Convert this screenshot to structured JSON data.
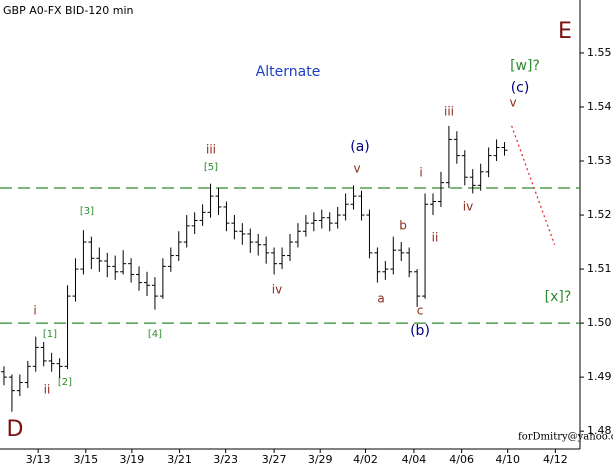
{
  "chart_data": {
    "type": "ohlc",
    "title": "GBP A0-FX BID-120 min",
    "footer": "forDmitry@yahoo.com",
    "color": "#000000",
    "x": [
      0,
      1,
      2,
      3,
      4,
      5,
      6,
      7,
      8,
      9,
      10,
      11,
      12,
      13,
      14,
      15,
      16,
      17,
      18,
      19,
      20,
      21,
      22,
      23,
      24,
      25,
      26,
      27,
      28,
      29,
      30,
      31,
      32,
      33,
      34,
      35,
      36,
      37,
      38,
      39,
      40,
      41,
      42,
      43,
      44,
      45,
      46,
      47,
      48,
      49,
      50,
      51,
      52,
      53,
      54,
      55,
      56,
      57,
      58,
      59,
      60,
      61,
      62,
      63
    ],
    "open": [
      1.491,
      1.49,
      1.4875,
      1.489,
      1.492,
      1.4955,
      1.493,
      1.4925,
      1.492,
      1.505,
      1.51,
      1.515,
      1.512,
      1.5115,
      1.5105,
      1.5095,
      1.511,
      1.509,
      1.5075,
      1.507,
      1.505,
      1.5105,
      1.5125,
      1.515,
      1.518,
      1.519,
      1.5205,
      1.5235,
      1.5215,
      1.5185,
      1.517,
      1.5165,
      1.515,
      1.5145,
      1.513,
      1.511,
      1.5125,
      1.515,
      1.517,
      1.5185,
      1.519,
      1.5195,
      1.5185,
      1.52,
      1.522,
      1.5235,
      1.52,
      1.513,
      1.5095,
      1.51,
      1.5135,
      1.513,
      1.5095,
      1.505,
      1.522,
      1.5225,
      1.526,
      1.534,
      1.531,
      1.527,
      1.5255,
      1.528,
      1.531,
      1.5325
    ],
    "high": [
      1.492,
      1.4905,
      1.4905,
      1.493,
      1.4975,
      1.4965,
      1.4945,
      1.4935,
      1.507,
      1.512,
      1.5172,
      1.516,
      1.514,
      1.513,
      1.5125,
      1.5135,
      1.512,
      1.5105,
      1.5095,
      1.5085,
      1.512,
      1.514,
      1.517,
      1.52,
      1.5205,
      1.522,
      1.5258,
      1.525,
      1.5225,
      1.52,
      1.5185,
      1.5175,
      1.5165,
      1.516,
      1.514,
      1.514,
      1.5165,
      1.5185,
      1.52,
      1.5205,
      1.521,
      1.5205,
      1.5215,
      1.524,
      1.5255,
      1.5245,
      1.521,
      1.514,
      1.5115,
      1.516,
      1.515,
      1.514,
      1.51,
      1.524,
      1.524,
      1.528,
      1.5365,
      1.5355,
      1.532,
      1.5285,
      1.5295,
      1.5325,
      1.534,
      1.5335
    ],
    "low": [
      1.4885,
      1.4836,
      1.4865,
      1.488,
      1.491,
      1.492,
      1.491,
      1.4898,
      1.4915,
      1.504,
      1.509,
      1.51,
      1.5095,
      1.5085,
      1.508,
      1.509,
      1.5075,
      1.506,
      1.505,
      1.5025,
      1.5045,
      1.5095,
      1.5115,
      1.514,
      1.5165,
      1.518,
      1.5195,
      1.52,
      1.517,
      1.5155,
      1.5145,
      1.513,
      1.5125,
      1.511,
      1.509,
      1.51,
      1.5115,
      1.514,
      1.516,
      1.517,
      1.5175,
      1.517,
      1.5175,
      1.519,
      1.521,
      1.519,
      1.512,
      1.5075,
      1.508,
      1.509,
      1.5115,
      1.5085,
      1.503,
      1.5045,
      1.52,
      1.5215,
      1.525,
      1.5295,
      1.5255,
      1.524,
      1.5245,
      1.527,
      1.53,
      1.531
    ],
    "close": [
      1.49,
      1.4875,
      1.489,
      1.492,
      1.4955,
      1.493,
      1.4925,
      1.492,
      1.505,
      1.51,
      1.515,
      1.512,
      1.5115,
      1.5105,
      1.5095,
      1.511,
      1.509,
      1.5075,
      1.507,
      1.505,
      1.5105,
      1.5125,
      1.515,
      1.518,
      1.519,
      1.5205,
      1.5235,
      1.5215,
      1.5185,
      1.517,
      1.5165,
      1.515,
      1.5145,
      1.513,
      1.511,
      1.5125,
      1.515,
      1.517,
      1.5185,
      1.519,
      1.5195,
      1.5185,
      1.52,
      1.522,
      1.5235,
      1.52,
      1.513,
      1.5095,
      1.51,
      1.5135,
      1.513,
      1.5095,
      1.505,
      1.522,
      1.5225,
      1.526,
      1.534,
      1.531,
      1.527,
      1.5255,
      1.528,
      1.531,
      1.5325,
      1.532
    ],
    "xlim": [
      -0.5,
      72.5
    ],
    "ylim": [
      1.4767,
      1.5598
    ],
    "xticks": [
      {
        "value": 4.3,
        "label": "3/13"
      },
      {
        "value": 10.3,
        "label": "3/15"
      },
      {
        "value": 16.1,
        "label": "3/19"
      },
      {
        "value": 22.1,
        "label": "3/21"
      },
      {
        "value": 27.9,
        "label": "3/23"
      },
      {
        "value": 34.0,
        "label": "3/27"
      },
      {
        "value": 39.8,
        "label": "3/29"
      },
      {
        "value": 45.5,
        "label": "4/02"
      },
      {
        "value": 51.6,
        "label": "4/04"
      },
      {
        "value": 57.6,
        "label": "4/06"
      },
      {
        "value": 63.4,
        "label": "4/10"
      },
      {
        "value": 69.4,
        "label": "4/12"
      }
    ],
    "yticks": [
      1.55,
      1.54,
      1.53,
      1.52,
      1.51,
      {
        "value": 1.5,
        "label": "1.50"
      },
      1.49,
      1.48
    ],
    "hlines": [
      1.525,
      1.5
    ],
    "hline_color": "#2e8b2e",
    "projection": {
      "x": [
        63.9,
        69.3
      ],
      "y": [
        1.5365,
        1.5145
      ],
      "color": "#e03030"
    },
    "annotations": [
      {
        "text": "D",
        "color": "#7a0f0f"
      },
      {
        "text": "E",
        "color": "#7a0f0f"
      },
      {
        "text": "Alternate",
        "color": "#1c3fc7"
      },
      {
        "text": "i",
        "color": "#8b2a1a"
      },
      {
        "text": "ii",
        "color": "#8b2a1a"
      },
      {
        "text": "[1]",
        "color": "#2e8b2e"
      },
      {
        "text": "[2]",
        "color": "#2e8b2e"
      },
      {
        "text": "[3]",
        "color": "#2e8b2e"
      },
      {
        "text": "iii",
        "color": "#8b2a1a"
      },
      {
        "text": "[5]",
        "color": "#2e8b2e"
      },
      {
        "text": "[4]",
        "color": "#2e8b2e"
      },
      {
        "text": "iv",
        "color": "#8b2a1a"
      },
      {
        "text": "(a)",
        "color": "#000080"
      },
      {
        "text": "v",
        "color": "#8b2a1a"
      },
      {
        "text": "a",
        "color": "#8b2a1a"
      },
      {
        "text": "b",
        "color": "#8b2a1a"
      },
      {
        "text": "c",
        "color": "#8b2a1a"
      },
      {
        "text": "(b)",
        "color": "#000080"
      },
      {
        "text": "i",
        "color": "#8b2a1a"
      },
      {
        "text": "ii",
        "color": "#8b2a1a"
      },
      {
        "text": "iii",
        "color": "#8b2a1a"
      },
      {
        "text": "iv",
        "color": "#8b2a1a"
      },
      {
        "text": "[w]?",
        "color": "#2e8b2e"
      },
      {
        "text": "(c)",
        "color": "#000080"
      },
      {
        "text": "v",
        "color": "#8b2a1a"
      },
      {
        "text": "[x]?",
        "color": "#2e8b2e"
      }
    ]
  }
}
